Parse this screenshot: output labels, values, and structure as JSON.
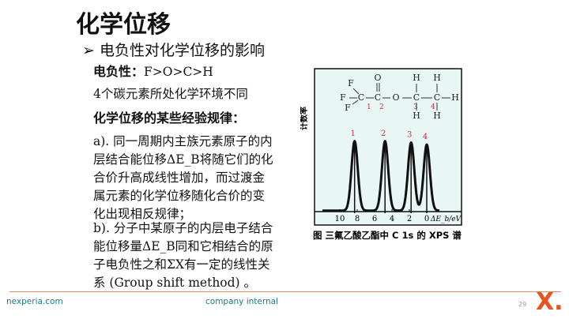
{
  "slide": {
    "title": "化学位移",
    "bullet_symbol": "➢",
    "bullet": "电负性对化学位移的影响",
    "electronegativity_label": "电负性：",
    "electronegativity_value": "F>O>C>H",
    "line2": "4个碳元素所处化学环境不同",
    "rules_heading": "化学位移的某些经验规律：",
    "rule_a": [
      "a). 同一周期内主族元素原子的内",
      "层结合能位移ΔE_B将随它们的化",
      "合价升高成线性增加，而过渡金",
      "属元素的化学位移随化合价的变",
      "化出现相反规律；"
    ],
    "rule_b": [
      "b). 分子中某原子的内层电子结合",
      "能位移量ΔE_B同和它相结合的原",
      "子电负性之和ΣX有一定的线性关",
      "系 (Group shift method) 。"
    ]
  },
  "figure": {
    "caption": "图   三氟乙酸乙酯中 C 1s 的 XPS 谱",
    "ylabel": "计数率",
    "molecule": {
      "atoms": [
        "F",
        "F",
        "F",
        "C",
        "C",
        "O",
        "O",
        "C",
        "C",
        "H",
        "H",
        "H",
        "H",
        "H"
      ],
      "carbon_labels": [
        "1",
        "2",
        "3",
        "4"
      ]
    },
    "background": "#e8f6f4"
  },
  "chart_data": {
    "type": "line",
    "xlabel": "ΔE_b/eV",
    "ylabel": "计数率",
    "xlim": [
      12,
      -1.5
    ],
    "x_ticks": [
      10,
      8,
      6,
      4,
      2,
      0
    ],
    "x_reversed": true,
    "peaks": [
      {
        "label": "1",
        "x": 8.3,
        "height": 1.0
      },
      {
        "label": "2",
        "x": 4.8,
        "height": 1.0
      },
      {
        "label": "3",
        "x": 1.8,
        "height": 0.98
      },
      {
        "label": "4",
        "x": 0.0,
        "height": 0.95
      }
    ]
  },
  "footer": {
    "site": "nexperia.com",
    "classification": "company internal",
    "page": "29",
    "logo": "X."
  }
}
